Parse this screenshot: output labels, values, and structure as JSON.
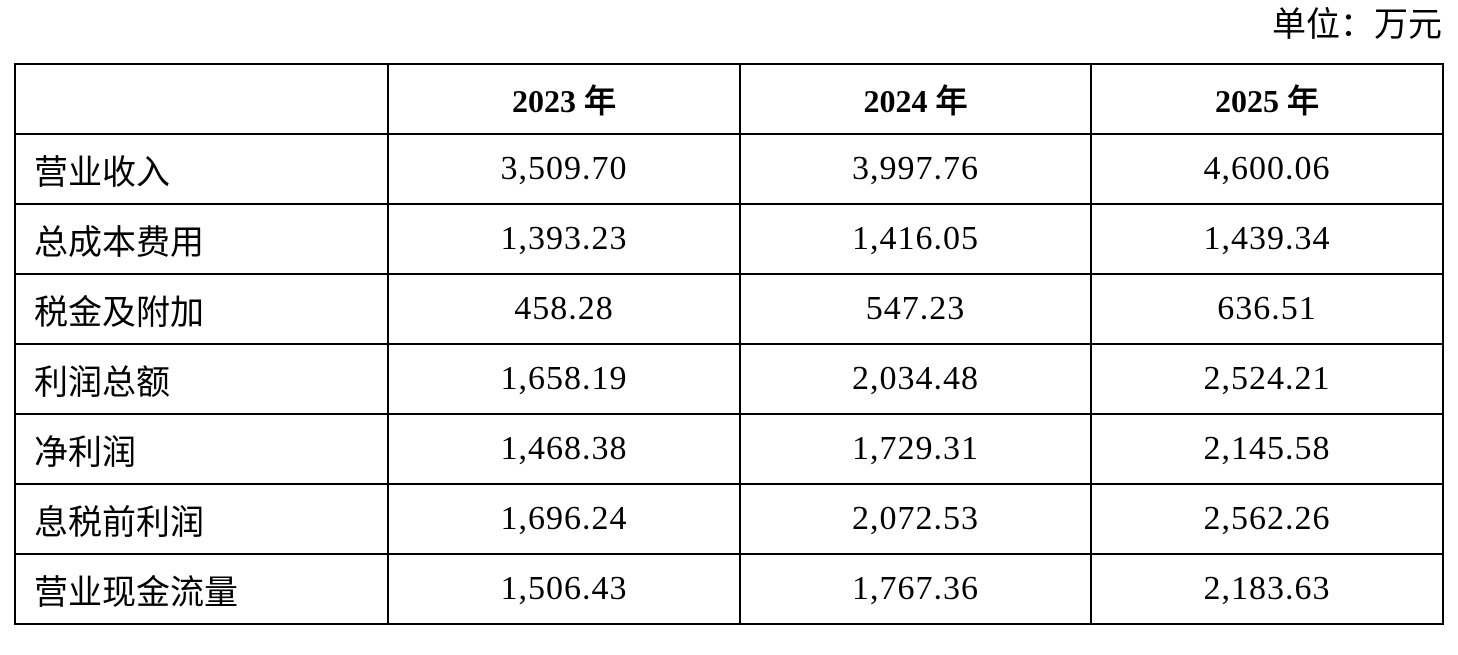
{
  "unit": "单位：万元",
  "table": {
    "header": [
      "",
      "2023 年",
      "2024 年",
      "2025 年"
    ],
    "rows": [
      [
        "营业收入",
        "3,509.70",
        "3,997.76",
        "4,600.06"
      ],
      [
        "总成本费用",
        "1,393.23",
        "1,416.05",
        "1,439.34"
      ],
      [
        "税金及附加",
        "458.28",
        "547.23",
        "636.51"
      ],
      [
        "利润总额",
        "1,658.19",
        "2,034.48",
        "2,524.21"
      ],
      [
        "净利润",
        "1,468.38",
        "1,729.31",
        "2,145.58"
      ],
      [
        "息税前利润",
        "1,696.24",
        "2,072.53",
        "2,562.26"
      ],
      [
        "营业现金流量",
        "1,506.43",
        "1,767.36",
        "2,183.63"
      ]
    ]
  }
}
